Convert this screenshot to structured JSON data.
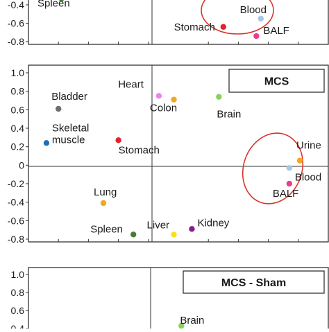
{
  "chart_data": [
    {
      "type": "scatter",
      "title": "",
      "xlabel": "",
      "ylabel": "",
      "ylim": [
        -0.8,
        1.0
      ],
      "y_ticks_visible": [
        "-0.4",
        "-0.6",
        "-0.8"
      ],
      "grid": false,
      "x_ticks_values": [
        -1.0,
        -0.8,
        -0.6,
        -0.4,
        -0.2,
        0.2,
        0.4,
        0.6,
        0.8,
        1.0
      ],
      "points": [
        {
          "label": "Spleen",
          "x": -0.78,
          "y": -0.33,
          "color": "#4a7d33"
        },
        {
          "label": "Stomach",
          "x": 0.3,
          "y": -0.64,
          "color": "#e8202a"
        },
        {
          "label": "Blood",
          "x": 0.55,
          "y": -0.55,
          "color": "#a6c8e8"
        },
        {
          "label": "BALF",
          "x": 0.52,
          "y": -0.74,
          "color": "#ec3d8c"
        }
      ],
      "ellipse_around": [
        "Blood",
        "BALF"
      ],
      "ellipse_color": "#d9342b"
    },
    {
      "type": "scatter",
      "title": "MCS",
      "xlabel": "",
      "ylabel": "",
      "ylim": [
        -0.8,
        1.0
      ],
      "y_ticks": [
        "1.0",
        "0.8",
        "0.6",
        "0.4",
        "0.2",
        "0",
        "-0.2",
        "-0.4",
        "-0.6",
        "-0.8"
      ],
      "grid": false,
      "x_ticks_values": [
        -1.0,
        -0.8,
        -0.6,
        -0.4,
        -0.2,
        0.2,
        0.4,
        0.6,
        0.8,
        1.0
      ],
      "points": [
        {
          "label": "Bladder",
          "x": -0.8,
          "y": 0.61,
          "color": "#6e6e6e"
        },
        {
          "label": "Heart",
          "x": -0.13,
          "y": 0.75,
          "color": "#ee82ee"
        },
        {
          "label": "Colon",
          "x": -0.03,
          "y": 0.71,
          "color": "#f2a71e"
        },
        {
          "label": "Brain",
          "x": 0.27,
          "y": 0.74,
          "color": "#8ccf5a"
        },
        {
          "label": "Skeletal\nmuscle",
          "x": -0.88,
          "y": 0.24,
          "color": "#1e6fba"
        },
        {
          "label": "Stomach",
          "x": -0.4,
          "y": 0.27,
          "color": "#e8202a"
        },
        {
          "label": "Urine",
          "x": 0.81,
          "y": 0.05,
          "color": "#f2a71e"
        },
        {
          "label": "Blood",
          "x": 0.74,
          "y": -0.03,
          "color": "#a6c8e8"
        },
        {
          "label": "BALF",
          "x": 0.74,
          "y": -0.2,
          "color": "#ec3d8c"
        },
        {
          "label": "Lung",
          "x": -0.5,
          "y": -0.41,
          "color": "#f2a71e"
        },
        {
          "label": "Liver",
          "x": -0.03,
          "y": -0.75,
          "color": "#f2e21e"
        },
        {
          "label": "Kidney",
          "x": 0.09,
          "y": -0.69,
          "color": "#8a1a8a"
        },
        {
          "label": "Spleen",
          "x": -0.3,
          "y": -0.75,
          "color": "#4a7d33"
        }
      ],
      "ellipse_around": [
        "Urine",
        "Blood",
        "BALF"
      ],
      "ellipse_color": "#d9342b"
    },
    {
      "type": "scatter",
      "title": "MCS - Sham",
      "xlabel": "",
      "ylabel": "",
      "y_ticks_visible": [
        "1.0",
        "0.8",
        "0.6",
        "0.4"
      ],
      "grid": false,
      "points": [
        {
          "label": "Brain",
          "x": 0.02,
          "y": 0.43,
          "color": "#8ccf5a"
        }
      ]
    }
  ]
}
